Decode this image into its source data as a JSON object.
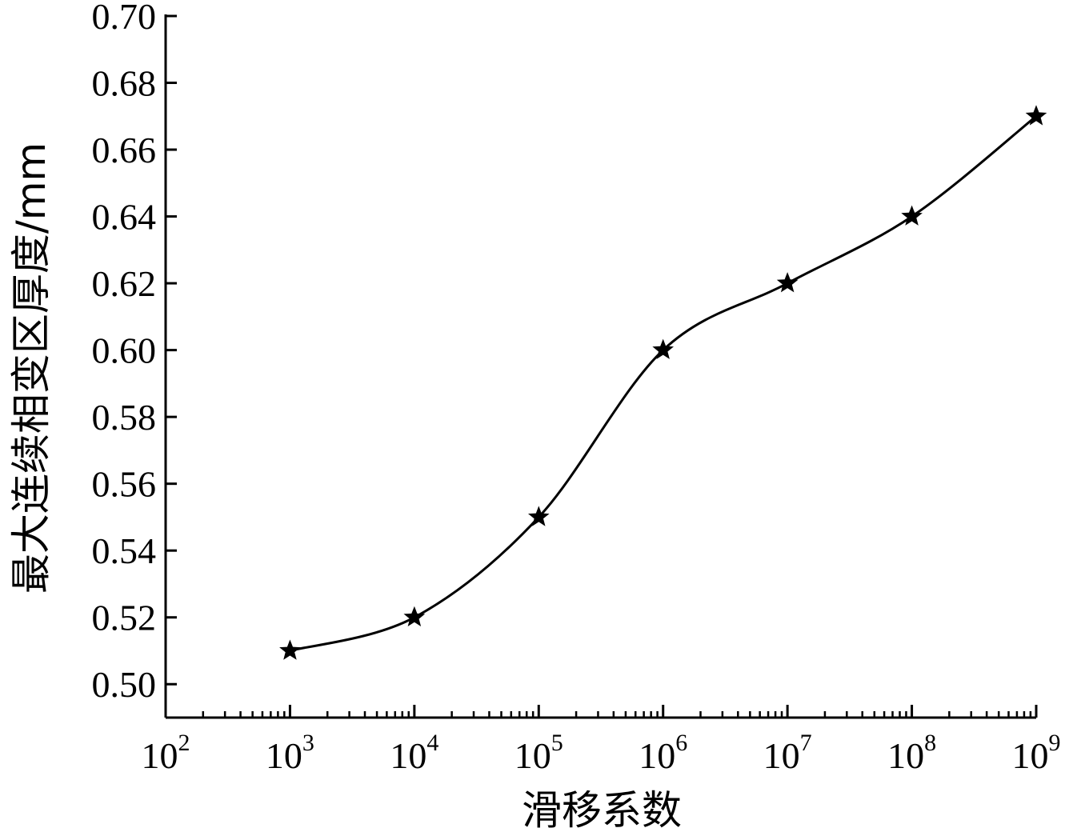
{
  "chart_data": {
    "type": "line",
    "xlabel": "滑移系数",
    "ylabel": "最大连续相变区厚度/mm",
    "x_scale": "log",
    "xlim": [
      100,
      1000000000
    ],
    "ylim": [
      0.49,
      0.7
    ],
    "x_ticks": [
      {
        "value": 100,
        "base": "10",
        "exp": "2"
      },
      {
        "value": 1000,
        "base": "10",
        "exp": "3"
      },
      {
        "value": 10000,
        "base": "10",
        "exp": "4"
      },
      {
        "value": 100000,
        "base": "10",
        "exp": "5"
      },
      {
        "value": 1000000,
        "base": "10",
        "exp": "6"
      },
      {
        "value": 10000000,
        "base": "10",
        "exp": "7"
      },
      {
        "value": 100000000,
        "base": "10",
        "exp": "8"
      },
      {
        "value": 1000000000,
        "base": "10",
        "exp": "9"
      }
    ],
    "y_ticks": [
      "0.50",
      "0.52",
      "0.54",
      "0.56",
      "0.58",
      "0.60",
      "0.62",
      "0.64",
      "0.66",
      "0.68",
      "0.70"
    ],
    "series": [
      {
        "marker": "star",
        "color": "#000000",
        "x": [
          1000,
          10000,
          100000,
          1000000,
          10000000,
          100000000,
          1000000000
        ],
        "y": [
          0.51,
          0.52,
          0.55,
          0.6,
          0.62,
          0.64,
          0.67
        ]
      }
    ],
    "grid": false
  }
}
